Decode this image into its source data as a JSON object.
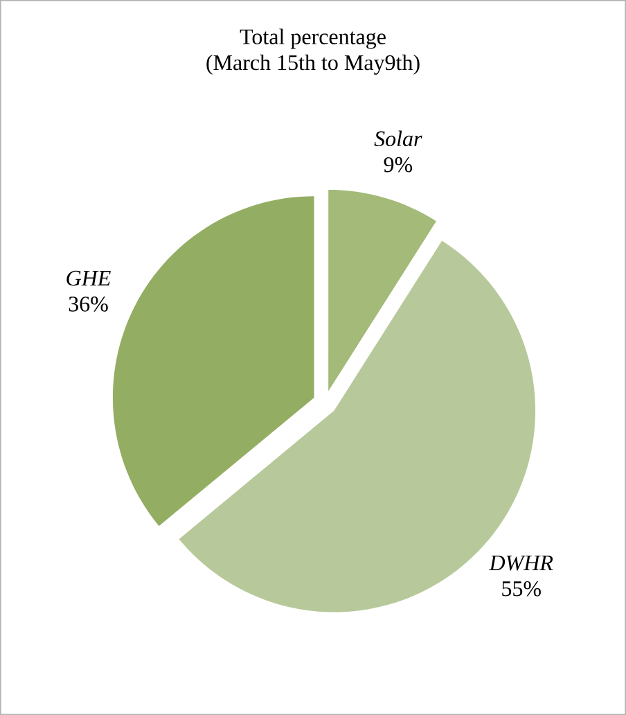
{
  "chart_data": {
    "type": "pie",
    "title": "Total percentage",
    "subtitle": "(March 15th to May9th)",
    "categories": [
      "*Solar*",
      "*DWHR*",
      "*GHE*"
    ],
    "values": [
      9,
      55,
      36
    ],
    "colors": [
      "#a3ba78",
      "#b7c99a",
      "#93ad62"
    ],
    "value_labels": [
      "9%",
      "55%",
      "36%"
    ]
  }
}
